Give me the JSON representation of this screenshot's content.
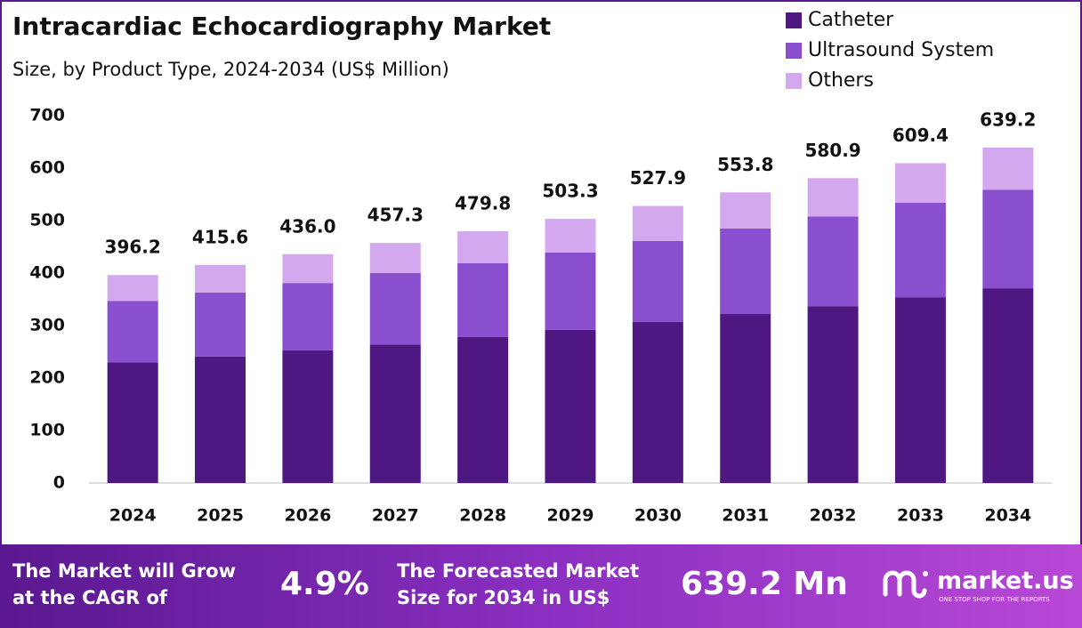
{
  "chart_data": {
    "type": "stacked-bar",
    "title": "Intracardiac Echocardiography Market",
    "subtitle": "Size, by Product Type, 2024-2034 (US$ Million)",
    "categories": [
      "2024",
      "2025",
      "2026",
      "2027",
      "2028",
      "2029",
      "2030",
      "2031",
      "2032",
      "2033",
      "2034"
    ],
    "series": [
      {
        "name": "Catheter",
        "color": "#4f1782",
        "values": [
          230,
          241,
          253,
          264,
          278,
          292,
          307,
          322,
          337,
          354,
          371
        ]
      },
      {
        "name": "Ultrasound System",
        "color": "#8a4fcf",
        "values": [
          117,
          122,
          128,
          136,
          141,
          147,
          154,
          163,
          171,
          180,
          188
        ]
      },
      {
        "name": "Others",
        "color": "#d3a8ee",
        "values": [
          49.2,
          52.6,
          55,
          57.3,
          60.8,
          64.3,
          66.9,
          68.8,
          72.9,
          75.4,
          80.2
        ]
      }
    ],
    "totals": [
      396.2,
      415.6,
      436,
      457.3,
      479.8,
      503.3,
      527.9,
      553.8,
      580.9,
      609.4,
      639.2
    ],
    "total_labels": [
      "396.2",
      "415.6",
      "436.0",
      "457.3",
      "479.8",
      "503.3",
      "527.9",
      "553.8",
      "580.9",
      "609.4",
      "639.2"
    ],
    "ylim": [
      0,
      700
    ],
    "yticks": [
      0,
      100,
      200,
      300,
      400,
      500,
      600,
      700
    ],
    "grid": false,
    "legend": "top-right"
  },
  "footer": {
    "cagr_text": [
      "The Market will Grow",
      "at the CAGR of"
    ],
    "cagr": "4.9%",
    "forecast_text": [
      "The Forecasted Market",
      "Size for 2034 in US$"
    ],
    "forecast": "639.2 Mn",
    "brand": "market.us",
    "tagline": "ONE STOP SHOP FOR THE REPORTS"
  }
}
